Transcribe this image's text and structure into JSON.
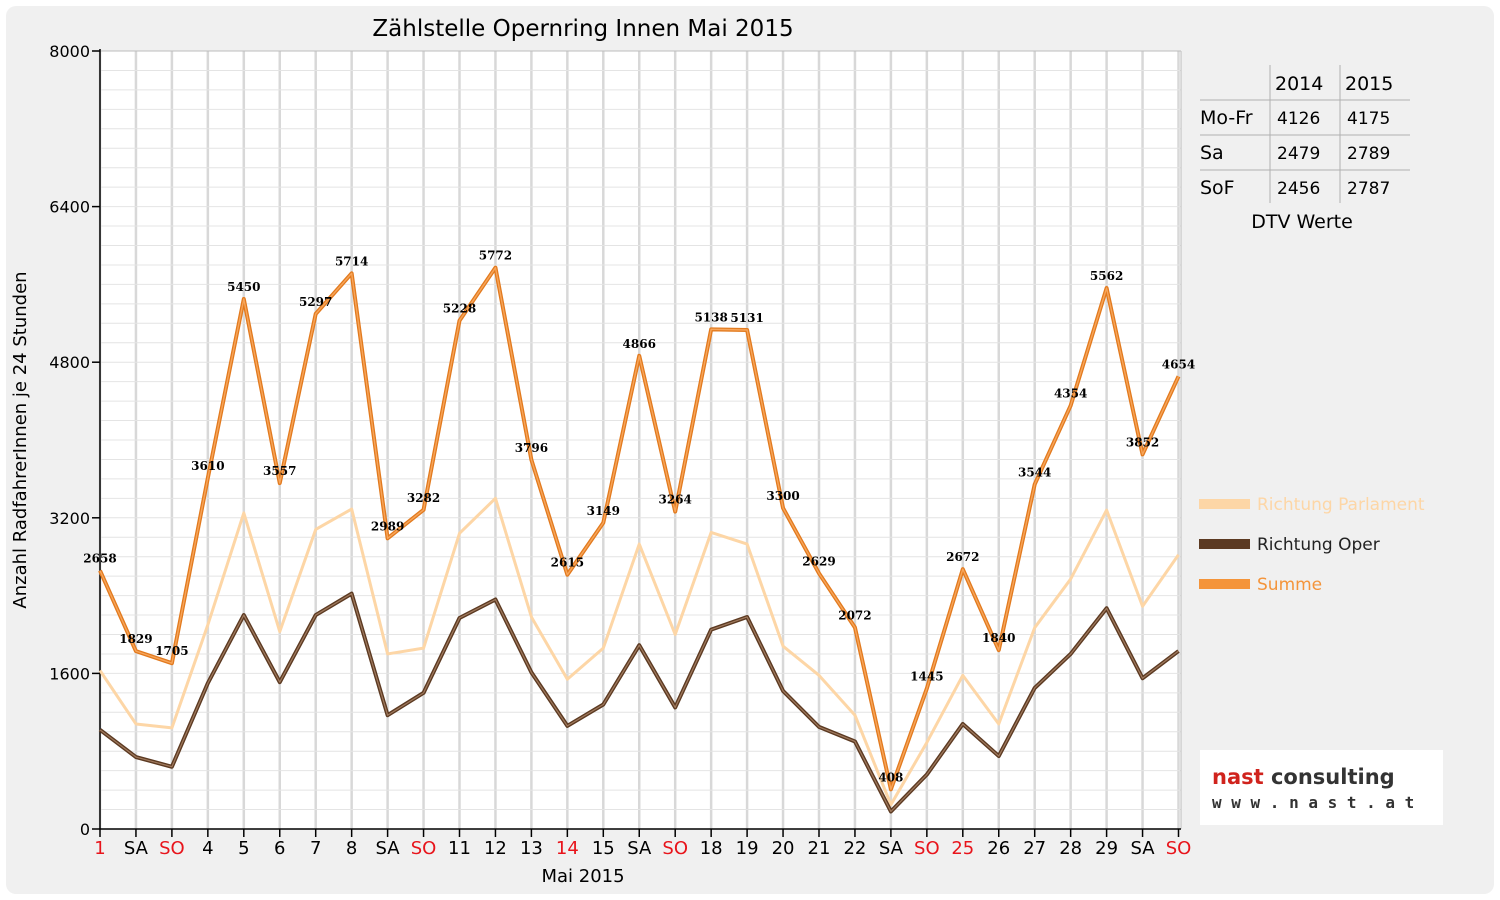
{
  "colors": {
    "parlament": "#fdd6a6",
    "oper": "#5c3a22",
    "summe": "#f4943a",
    "weekend_red": "#e8141b",
    "grid": "#d8d8d8",
    "logo_red": "#d0231d"
  },
  "chart_data": {
    "type": "line",
    "title": "Zählstelle Opernring Innen Mai 2015",
    "xlabel": "Mai 2015",
    "ylabel": "Anzahl RadfahrerInnen je 24 Stunden",
    "ylim": [
      0,
      8000
    ],
    "yticks": [
      0,
      1600,
      3200,
      4800,
      6400,
      8000
    ],
    "grid": true,
    "legend_position": "right",
    "categories": [
      "1",
      "SA",
      "SO",
      "4",
      "5",
      "6",
      "7",
      "8",
      "SA",
      "SO",
      "11",
      "12",
      "13",
      "14",
      "15",
      "SA",
      "SO",
      "18",
      "19",
      "20",
      "21",
      "22",
      "SA",
      "SO",
      "25",
      "26",
      "27",
      "28",
      "29",
      "SA",
      "SO"
    ],
    "weekend_or_holiday": [
      true,
      false,
      true,
      false,
      false,
      false,
      false,
      false,
      false,
      true,
      false,
      false,
      false,
      true,
      false,
      false,
      true,
      false,
      false,
      false,
      false,
      false,
      false,
      true,
      true,
      false,
      false,
      false,
      false,
      false,
      true
    ],
    "series": [
      {
        "name": "Richtung Parlament",
        "color_key": "parlament",
        "values": [
          1630,
          1080,
          1040,
          2100,
          3250,
          2030,
          3080,
          3290,
          1800,
          1860,
          3040,
          3400,
          2180,
          1540,
          1860,
          2930,
          2000,
          3050,
          2930,
          1880,
          1580,
          1170,
          250,
          890,
          1580,
          1080,
          2070,
          2570,
          3280,
          2290,
          2820
        ]
      },
      {
        "name": "Richtung Oper",
        "color_key": "oper",
        "values": [
          1020,
          740,
          640,
          1500,
          2200,
          1510,
          2200,
          2420,
          1170,
          1400,
          2170,
          2360,
          1610,
          1060,
          1280,
          1890,
          1250,
          2050,
          2180,
          1420,
          1050,
          900,
          180,
          560,
          1080,
          750,
          1450,
          1800,
          2270,
          1550,
          1830
        ]
      },
      {
        "name": "Summe",
        "color_key": "summe",
        "values": [
          2658,
          1829,
          1705,
          3610,
          5450,
          3557,
          5297,
          5714,
          2989,
          3282,
          5228,
          5772,
          3796,
          2615,
          3149,
          4866,
          3264,
          5138,
          5131,
          3300,
          2629,
          2072,
          408,
          1445,
          2672,
          1840,
          3544,
          4354,
          5562,
          3852,
          4654
        ]
      }
    ],
    "data_labels": [
      "2658",
      "1829",
      "1705",
      "3610",
      "5450",
      "3557",
      "5297",
      "5714",
      "2989",
      "3282",
      "5228",
      "5772",
      "3796",
      "2615",
      "3149",
      "4866",
      "3264",
      "5138",
      "5131",
      "3300",
      "2629",
      "2072",
      "408",
      "1445",
      "2672",
      "1840",
      "3544",
      "4354",
      "5562",
      "3852",
      "4654"
    ]
  },
  "dtv_table": {
    "caption": "DTV Werte",
    "header": [
      "",
      "2014",
      "2015"
    ],
    "rows": [
      [
        "Mo-Fr",
        "4126",
        "4175"
      ],
      [
        "Sa",
        "2479",
        "2789"
      ],
      [
        "SoF",
        "2456",
        "2787"
      ]
    ]
  },
  "logo": {
    "line1_red": "nast",
    "line1_dark": " consulting",
    "line2": "w w w . n a s t . a t"
  }
}
